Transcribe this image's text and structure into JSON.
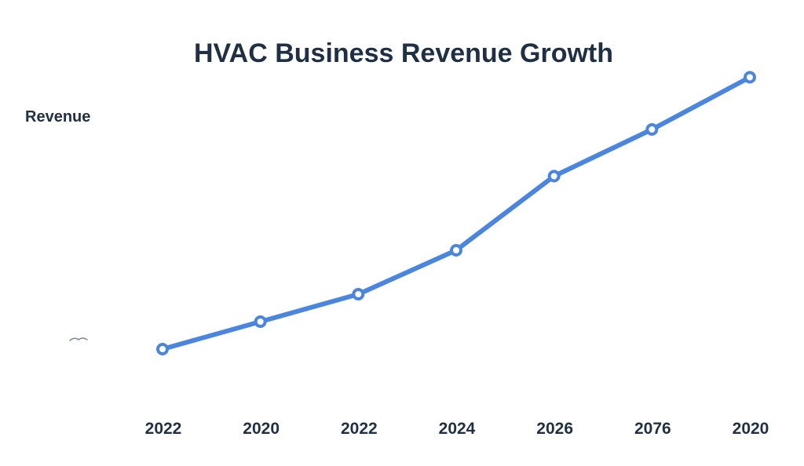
{
  "colors": {
    "line": "#4a86e0",
    "text": "#1f3044"
  },
  "chart_data": {
    "type": "line",
    "title": "HVAC Business Revenue Growth",
    "xlabel": "",
    "ylabel": "Revenue",
    "categories": [
      "2022",
      "2020",
      "2022",
      "2024",
      "2026",
      "2076",
      "2020"
    ],
    "series": [
      {
        "name": "Revenue",
        "values": [
          10,
          20,
          30,
          46,
          73,
          90,
          109
        ]
      }
    ],
    "ylim": [
      0,
      120
    ],
    "grid": false,
    "legend": "none"
  }
}
